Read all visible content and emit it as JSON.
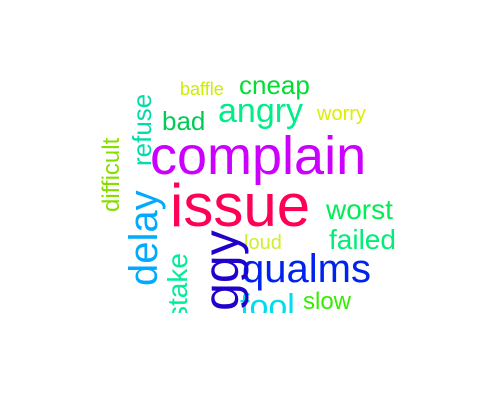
{
  "words": [
    {
      "text": "complain",
      "color": "#cc00ff"
    },
    {
      "text": "issue",
      "color": "#ff0055"
    },
    {
      "text": "qualms",
      "color": "#0022ee"
    },
    {
      "text": "delay",
      "color": "#00aaff"
    },
    {
      "text": "angry",
      "color": "#00ee88"
    },
    {
      "text": "cneap",
      "color": "#00dd33"
    },
    {
      "text": "baffle",
      "color": "#ccee00"
    },
    {
      "text": "bad",
      "color": "#00cc55"
    },
    {
      "text": "worry",
      "color": "#ddee00"
    },
    {
      "text": "worst",
      "color": "#00ee55"
    },
    {
      "text": "failed",
      "color": "#00ee77"
    },
    {
      "text": "loud",
      "color": "#ccee33"
    },
    {
      "text": "slow",
      "color": "#33ee00"
    },
    {
      "text": "fool",
      "color": "#00ddee"
    },
    {
      "text": "refuse",
      "color": "#00ddaa"
    },
    {
      "text": "difficult",
      "color": "#88dd00"
    },
    {
      "text": "stake",
      "color": "#00ee99"
    },
    {
      "text": "iggy",
      "color": "#2200cc"
    }
  ]
}
